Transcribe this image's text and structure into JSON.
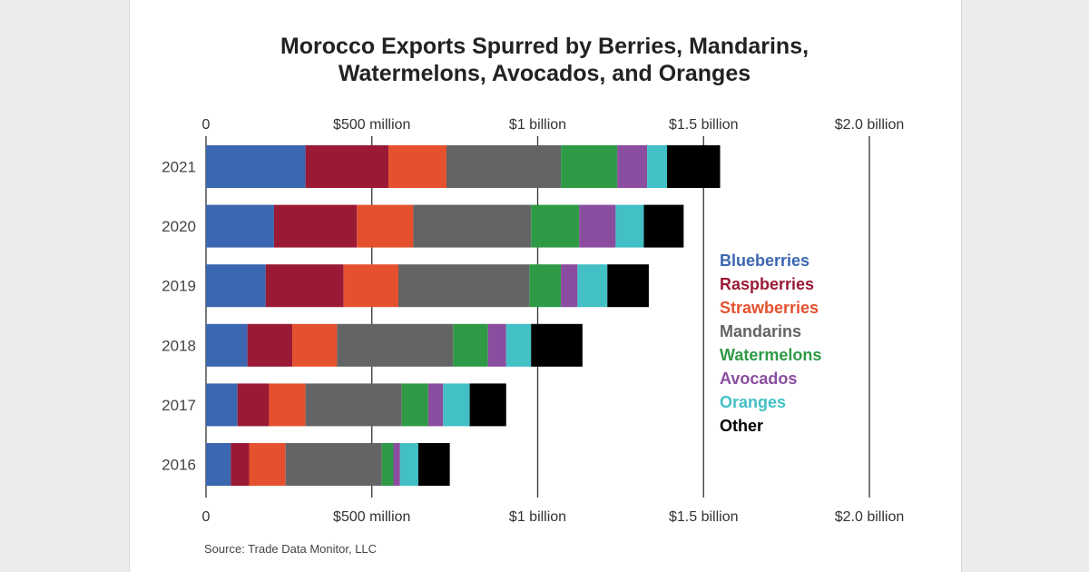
{
  "chart_data": {
    "type": "bar",
    "orientation": "horizontal",
    "stacked": true,
    "title": "Morocco Exports Spurred by Berries, Mandarins, Watermelons, Avocados, and Oranges",
    "title_lines": [
      "Morocco Exports Spurred by Berries, Mandarins,",
      "Watermelons, Avocados, and Oranges"
    ],
    "unit": "million USD",
    "categories": [
      "2021",
      "2020",
      "2019",
      "2018",
      "2017",
      "2016"
    ],
    "xlim": [
      0,
      2000
    ],
    "x_ticks": [
      0,
      500,
      1000,
      1500,
      2000
    ],
    "x_tick_labels": [
      "0",
      "$500 million",
      "$1 billion",
      "$1.5 billion",
      "$2.0 billion"
    ],
    "x_ticks_position": "top-and-bottom",
    "grid": true,
    "legend_position": "right",
    "series": [
      {
        "name": "Blueberries",
        "color": "#3b67b1",
        "values": [
          300,
          205,
          180,
          125,
          95,
          75
        ]
      },
      {
        "name": "Raspberries",
        "color": "#9a1a35",
        "values": [
          250,
          250,
          235,
          135,
          95,
          55
        ]
      },
      {
        "name": "Strawberries",
        "color": "#e5512e",
        "values": [
          175,
          170,
          165,
          135,
          110,
          110
        ]
      },
      {
        "name": "Mandarins",
        "color": "#636466",
        "values": [
          345,
          355,
          395,
          350,
          290,
          290
        ]
      },
      {
        "name": "Watermelons",
        "color": "#2f9a46",
        "values": [
          170,
          145,
          95,
          105,
          80,
          35
        ]
      },
      {
        "name": "Avocados",
        "color": "#8a4d9f",
        "values": [
          90,
          110,
          50,
          55,
          45,
          20
        ]
      },
      {
        "name": "Oranges",
        "color": "#42c0c6",
        "values": [
          60,
          85,
          90,
          75,
          80,
          55
        ]
      },
      {
        "name": "Other",
        "color": "#000000",
        "values": [
          160,
          120,
          125,
          155,
          110,
          95
        ]
      }
    ],
    "source": "Source: Trade Data Monitor, LLC"
  }
}
